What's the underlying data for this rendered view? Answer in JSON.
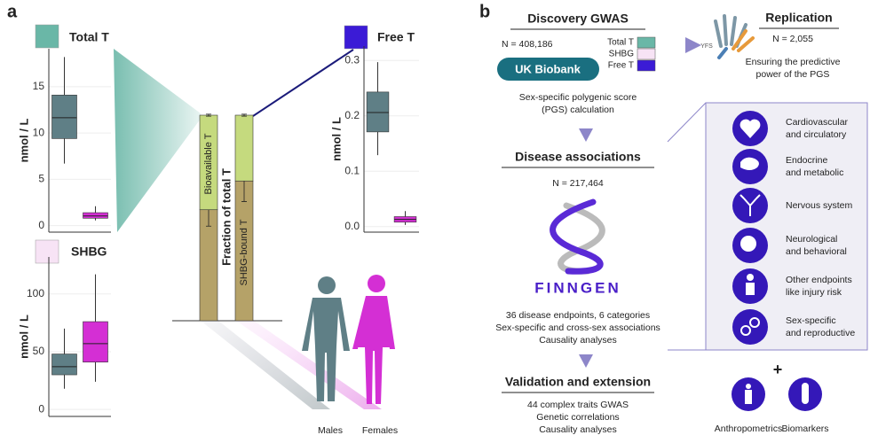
{
  "panel_a": {
    "label": "a",
    "males": "Males",
    "females": "Females"
  },
  "chart_data": [
    {
      "type": "box",
      "title": "Total T",
      "swatch_color": "#6ab7a7",
      "y_label": "nmol / L",
      "ylim": [
        -0.7,
        19.1
      ],
      "yticks": [
        0,
        5,
        10,
        15
      ],
      "grid": true,
      "boxes": [
        {
          "color": "#5f7f86",
          "whisker_low": 6.7,
          "q1": 9.4,
          "median": 11.65,
          "q3": 14.1,
          "whisker_high": 18.2
        },
        {
          "color": "#d42fd4",
          "whisker_low": 0.57,
          "q1": 0.8,
          "median": 1.05,
          "q3": 1.4,
          "whisker_high": 2.1
        }
      ]
    },
    {
      "type": "box",
      "title": "Free T",
      "swatch_color": "#3b1bd6",
      "y_label": "nmol / L",
      "ylim": [
        -0.01,
        0.326
      ],
      "yticks": [
        {
          "value": 0,
          "label": "0.0"
        },
        0.1,
        0.2,
        0.3
      ],
      "grid": true,
      "boxes": [
        {
          "color": "#5f7f86",
          "whisker_low": 0.129,
          "q1": 0.171,
          "median": 0.206,
          "q3": 0.243,
          "whisker_high": 0.297
        },
        {
          "color": "#d42fd4",
          "whisker_low": 0.003,
          "q1": 0.008,
          "median": 0.013,
          "q3": 0.018,
          "whisker_high": 0.028
        }
      ]
    },
    {
      "type": "box",
      "title": "SHBG",
      "swatch_color": "#f7e3f5",
      "y_label": "nmol / L",
      "ylim": [
        -6,
        132
      ],
      "yticks": [
        0,
        50,
        100
      ],
      "grid": true,
      "boxes": [
        {
          "color": "#5f7f86",
          "whisker_low": 18,
          "q1": 30,
          "median": 37,
          "q3": 48,
          "whisker_high": 70
        },
        {
          "color": "#d42fd4",
          "whisker_low": 24,
          "q1": 41,
          "median": 57,
          "q3": 76,
          "whisker_high": 117
        }
      ]
    },
    {
      "type": "stacked-bar",
      "y_label": "Fraction of total T",
      "ylim": [
        0,
        1
      ],
      "segment_colors": [
        "#b5a268",
        "#c5da7e"
      ],
      "bars": [
        {
          "label": "Bioavailable T",
          "segments": [
            0.54,
            0.46
          ],
          "errors": [
            0.08,
            0.005
          ]
        },
        {
          "label": "SHBG-bound T",
          "segments": [
            0.68,
            0.32
          ],
          "errors": [
            0.1,
            0.005
          ]
        }
      ]
    }
  ],
  "panel_b": {
    "label": "b",
    "discovery": {
      "title": "Discovery GWAS",
      "n": "N = 408,186",
      "cohort": "UK Biobank",
      "legend": [
        {
          "name": "Total T",
          "color": "#6ab7a7"
        },
        {
          "name": "SHBG",
          "color": "#f7e3f5"
        },
        {
          "name": "Free T",
          "color": "#3b1bd6"
        }
      ],
      "method": [
        "Sex-specific polygenic score",
        "(PGS) calculation"
      ]
    },
    "replication": {
      "logo": "YFS",
      "title": "Replication",
      "n": "N = 2,055",
      "text": [
        "Ensuring the predictive",
        "power of the PGS"
      ]
    },
    "disease": {
      "title": "Disease associations",
      "n": "N = 217,464",
      "cohort": "FINNGEN",
      "text": [
        "36 disease endpoints, 6 categories",
        "Sex-specific and cross-sex associations",
        "Causality analyses"
      ]
    },
    "validation": {
      "title": "Validation and extension",
      "text": [
        "44 complex traits GWAS",
        "Genetic correlations",
        "Causality analyses"
      ]
    },
    "categories": [
      [
        "Cardiovascular",
        "and circulatory"
      ],
      [
        "Endocrine",
        "and metabolic"
      ],
      [
        "Nervous system"
      ],
      [
        "Neurological",
        "and behavioral"
      ],
      [
        "Other endpoints",
        "like injury risk"
      ],
      [
        "Sex-specific",
        "and reproductive"
      ]
    ],
    "plus": "+",
    "extras": [
      "Anthropometrics",
      "Biomarkers"
    ]
  }
}
